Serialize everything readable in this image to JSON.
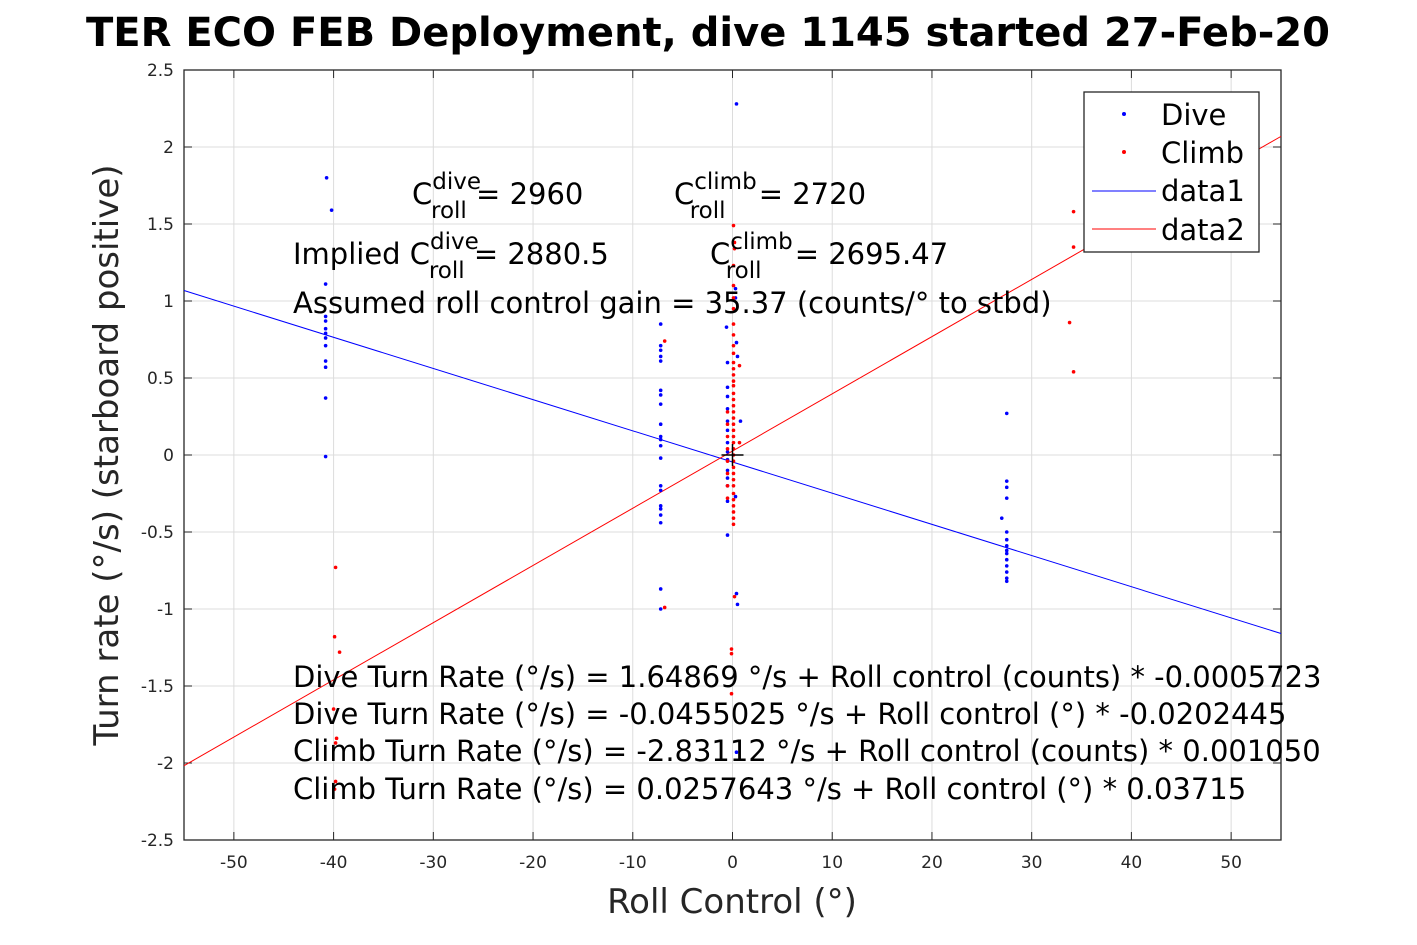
{
  "chart_data": {
    "type": "scatter",
    "title": "TER ECO FEB Deployment, dive 1145 started 27-Feb-20",
    "xlabel": "Roll Control (°)",
    "ylabel": "Turn rate (°/s) (starboard positive)",
    "xlim": [
      -55,
      55
    ],
    "ylim": [
      -2.5,
      2.5
    ],
    "xticks": [
      -50,
      -40,
      -30,
      -20,
      -10,
      0,
      10,
      20,
      30,
      40,
      50
    ],
    "xtick_labels": [
      "-50",
      "-40",
      "-30",
      "-20",
      "-10",
      "0",
      "10",
      "20",
      "30",
      "40",
      "50"
    ],
    "yticks": [
      -2.5,
      -2,
      -1.5,
      -1,
      -0.5,
      0,
      0.5,
      1,
      1.5,
      2,
      2.5
    ],
    "ytick_labels": [
      "-2.5",
      "-2",
      "-1.5",
      "-1",
      "-0.5",
      "0",
      "0.5",
      "1",
      "1.5",
      "2",
      "2.5"
    ],
    "grid": true,
    "legend_position": "top-right",
    "colors": {
      "dive": "#0000ff",
      "climb": "#ff0000",
      "axes": "#262626",
      "grid": "#dcdcdc"
    },
    "series": [
      {
        "name": "Dive",
        "kind": "points",
        "color": "#0000ff",
        "points": [
          [
            -40.7,
            1.8
          ],
          [
            -40.2,
            1.59
          ],
          [
            -40.8,
            1.11
          ],
          [
            -40.8,
            0.9
          ],
          [
            -40.8,
            0.87
          ],
          [
            -40.8,
            0.82
          ],
          [
            -40.8,
            0.79
          ],
          [
            -40.8,
            0.76
          ],
          [
            -40.8,
            0.71
          ],
          [
            -40.8,
            0.61
          ],
          [
            -40.8,
            0.57
          ],
          [
            -40.8,
            0.37
          ],
          [
            -40.8,
            -0.01
          ],
          [
            -7.2,
            0.85
          ],
          [
            -7.2,
            0.71
          ],
          [
            -7.2,
            0.68
          ],
          [
            -7.2,
            0.64
          ],
          [
            -7.2,
            0.61
          ],
          [
            -7.2,
            0.42
          ],
          [
            -7.2,
            0.39
          ],
          [
            -7.2,
            0.33
          ],
          [
            -7.2,
            0.2
          ],
          [
            -7.2,
            0.12
          ],
          [
            -7.2,
            0.1
          ],
          [
            -7.2,
            0.06
          ],
          [
            -7.2,
            -0.02
          ],
          [
            -7.2,
            -0.2
          ],
          [
            -7.2,
            -0.23
          ],
          [
            -7.2,
            -0.33
          ],
          [
            -7.2,
            -0.35
          ],
          [
            -7.2,
            -0.39
          ],
          [
            -7.2,
            -0.44
          ],
          [
            -7.2,
            -0.87
          ],
          [
            -7.2,
            -1.0
          ],
          [
            0.4,
            2.28
          ],
          [
            0.3,
            1.08
          ],
          [
            0.3,
            1.02
          ],
          [
            0.4,
            0.73
          ],
          [
            0.5,
            0.64
          ],
          [
            -0.6,
            0.83
          ],
          [
            -0.5,
            0.6
          ],
          [
            -0.5,
            0.44
          ],
          [
            -0.5,
            0.38
          ],
          [
            -0.5,
            0.3
          ],
          [
            -0.5,
            0.22
          ],
          [
            -0.5,
            0.16
          ],
          [
            -0.5,
            0.08
          ],
          [
            -0.5,
            0.02
          ],
          [
            -0.5,
            -0.03
          ],
          [
            -0.5,
            -0.1
          ],
          [
            -0.5,
            -0.15
          ],
          [
            -0.5,
            -0.2
          ],
          [
            -0.5,
            -0.3
          ],
          [
            -0.5,
            -0.52
          ],
          [
            0.8,
            0.22
          ],
          [
            0.3,
            -0.27
          ],
          [
            0.4,
            -0.9
          ],
          [
            0.5,
            -0.97
          ],
          [
            0.4,
            -1.93
          ],
          [
            27.5,
            0.27
          ],
          [
            27.5,
            -0.17
          ],
          [
            27.5,
            -0.21
          ],
          [
            27.5,
            -0.28
          ],
          [
            27.5,
            -0.5
          ],
          [
            27.5,
            -0.55
          ],
          [
            27.5,
            -0.59
          ],
          [
            27.5,
            -0.62
          ],
          [
            27.5,
            -0.64
          ],
          [
            27.5,
            -0.68
          ],
          [
            27.5,
            -0.72
          ],
          [
            27.5,
            -0.76
          ],
          [
            27.5,
            -0.8
          ],
          [
            27.5,
            -0.82
          ],
          [
            27.0,
            -0.41
          ]
        ]
      },
      {
        "name": "Climb",
        "kind": "points",
        "color": "#ff0000",
        "points": [
          [
            -39.8,
            -0.73
          ],
          [
            -39.9,
            -1.18
          ],
          [
            -39.4,
            -1.28
          ],
          [
            -40.0,
            -1.65
          ],
          [
            -39.7,
            -1.84
          ],
          [
            -39.8,
            -1.87
          ],
          [
            -39.8,
            -2.12
          ],
          [
            -39.9,
            -2.17
          ],
          [
            -6.8,
            0.74
          ],
          [
            -6.8,
            -0.99
          ],
          [
            0.1,
            1.49
          ],
          [
            0.2,
            1.38
          ],
          [
            0.2,
            1.34
          ],
          [
            0.1,
            1.23
          ],
          [
            0.1,
            1.1
          ],
          [
            0.1,
            1.02
          ],
          [
            0.1,
            0.95
          ],
          [
            0.1,
            0.85
          ],
          [
            0.1,
            0.78
          ],
          [
            0.1,
            0.71
          ],
          [
            0.1,
            0.66
          ],
          [
            0.1,
            0.6
          ],
          [
            0.1,
            0.56
          ],
          [
            0.1,
            0.52
          ],
          [
            0.1,
            0.48
          ],
          [
            0.1,
            0.45
          ],
          [
            0.1,
            0.4
          ],
          [
            0.1,
            0.36
          ],
          [
            0.1,
            0.32
          ],
          [
            0.1,
            0.28
          ],
          [
            0.1,
            0.24
          ],
          [
            0.1,
            0.2
          ],
          [
            0.1,
            0.16
          ],
          [
            0.1,
            0.12
          ],
          [
            0.1,
            0.08
          ],
          [
            0.1,
            0.04
          ],
          [
            0.1,
            0.0
          ],
          [
            0.1,
            -0.04
          ],
          [
            0.1,
            -0.08
          ],
          [
            0.1,
            -0.12
          ],
          [
            0.1,
            -0.16
          ],
          [
            0.1,
            -0.2
          ],
          [
            0.1,
            -0.25
          ],
          [
            0.1,
            -0.29
          ],
          [
            0.1,
            -0.33
          ],
          [
            0.1,
            -0.37
          ],
          [
            0.1,
            -0.41
          ],
          [
            0.1,
            -0.45
          ],
          [
            -0.5,
            0.28
          ],
          [
            -0.5,
            0.2
          ],
          [
            -0.5,
            0.12
          ],
          [
            -0.5,
            0.04
          ],
          [
            -0.5,
            -0.04
          ],
          [
            -0.5,
            -0.12
          ],
          [
            -0.5,
            -0.2
          ],
          [
            -0.5,
            -0.28
          ],
          [
            0.7,
            0.58
          ],
          [
            0.7,
            0.08
          ],
          [
            0.2,
            -0.92
          ],
          [
            -0.1,
            -1.26
          ],
          [
            -0.1,
            -1.29
          ],
          [
            -0.1,
            -1.55
          ],
          [
            34.2,
            1.58
          ],
          [
            34.2,
            1.35
          ],
          [
            33.8,
            0.86
          ],
          [
            34.2,
            0.54
          ]
        ]
      },
      {
        "name": "data1",
        "kind": "line",
        "color": "#0000ff",
        "intercept": -0.0455025,
        "slope": -0.0202445
      },
      {
        "name": "data2",
        "kind": "line",
        "color": "#ff0000",
        "intercept": 0.0257643,
        "slope": 0.03715
      }
    ],
    "marker": {
      "kind": "plus",
      "x": 0,
      "y": 0
    },
    "legend": [
      "Dive",
      "Climb",
      "data1",
      "data2"
    ],
    "annotations": {
      "c_dive": {
        "base": "C",
        "sup": "dive",
        "sub": "roll",
        "rest": " = 2960"
      },
      "c_climb": {
        "base": "C",
        "sup": "climb",
        "sub": "roll",
        "rest": " = 2720"
      },
      "implied_prefix": "Implied ",
      "implied_dive": {
        "base": "C",
        "sup": "dive",
        "sub": "roll",
        "rest": " = 2880.5"
      },
      "implied_climb": {
        "base": "C",
        "sup": "climb",
        "sub": "roll",
        "rest": " = 2695.47"
      },
      "gain": "Assumed roll control gain = 35.37 (counts/° to stbd)",
      "fit_lines": [
        "Dive Turn Rate (°/s) = 1.64869 °/s + Roll control (counts) * -0.0005723",
        "Dive Turn Rate (°/s) = -0.0455025 °/s + Roll control (°) * -0.0202445",
        "Climb Turn Rate (°/s) = -2.83112 °/s + Roll control (counts) * 0.001050",
        "Climb Turn Rate (°/s) = 0.0257643 °/s + Roll control (°) * 0.03715"
      ]
    }
  }
}
